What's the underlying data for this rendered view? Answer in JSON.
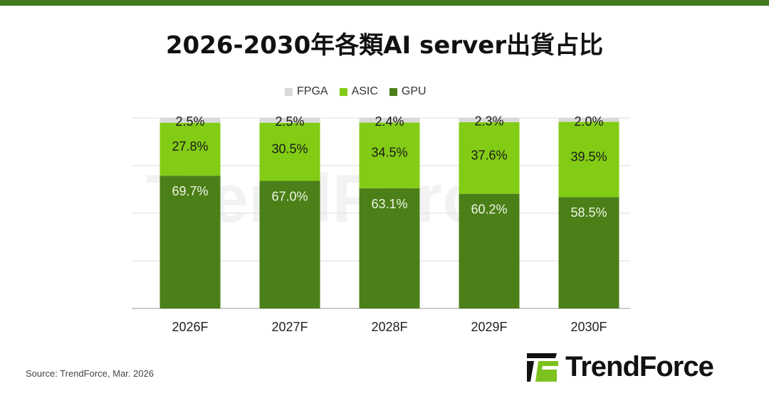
{
  "title": "2026-2030年各類AI server出貨占比",
  "source": "Source: TrendForce, Mar. 2026",
  "logo": "TrendForce",
  "colors": {
    "GPU": "#4b7f17",
    "ASIC": "#82cc15",
    "FPGA": "#d9d9d9",
    "accent": "#3f7a1f"
  },
  "chart_data": {
    "type": "bar",
    "stacked": true,
    "categories": [
      "2026F",
      "2027F",
      "2028F",
      "2029F",
      "2030F"
    ],
    "series": [
      {
        "name": "GPU",
        "values": [
          69.7,
          67.0,
          63.1,
          60.2,
          58.5
        ],
        "labels": [
          "69.7%",
          "67.0%",
          "63.1%",
          "60.2%",
          "58.5%"
        ]
      },
      {
        "name": "ASIC",
        "values": [
          27.8,
          30.5,
          34.5,
          37.6,
          39.5
        ],
        "labels": [
          "27.8%",
          "30.5%",
          "34.5%",
          "37.6%",
          "39.5%"
        ]
      },
      {
        "name": "FPGA",
        "values": [
          2.5,
          2.5,
          2.4,
          2.3,
          2.0
        ],
        "labels": [
          "2.5%",
          "2.5%",
          "2.4%",
          "2.3%",
          "2.0%"
        ]
      }
    ],
    "legend": [
      "FPGA",
      "ASIC",
      "GPU"
    ],
    "legend_position": "top",
    "ylim": [
      0,
      100
    ],
    "grid": true
  }
}
